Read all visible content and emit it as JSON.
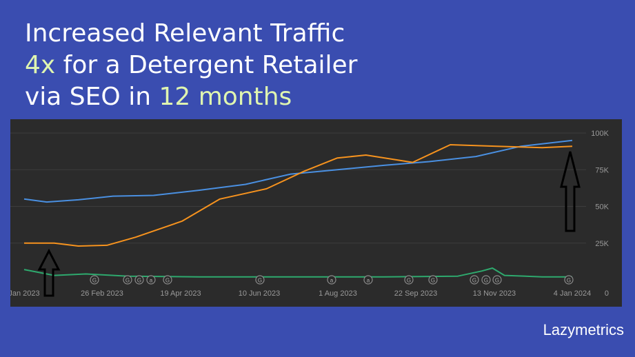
{
  "headline": {
    "line1": "Increased Relevant Traffic",
    "line2_highlight": "4x",
    "line2_rest": " for a Detergent Retailer",
    "line3_pre": "via SEO in ",
    "line3_highlight": "12 months"
  },
  "brand": "Lazymetrics",
  "colors": {
    "background": "#3a4db0",
    "highlight": "#dff5b0",
    "panel": "#2b2b2b",
    "blue_series": "#4a90e2",
    "orange_series": "#f7931e",
    "green_series": "#2eaa6e"
  },
  "chart_data": {
    "type": "line",
    "x_ticks": [
      "Jan 2023",
      "26 Feb 2023",
      "19 Apr 2023",
      "10 Jun 2023",
      "1 Aug 2023",
      "22 Sep 2023",
      "13 Nov 2023",
      "4 Jan 2024"
    ],
    "y_ticks": [
      "100K",
      "75K",
      "50K",
      "25K",
      "0"
    ],
    "ylim": [
      0,
      100000
    ],
    "grid": true,
    "series": [
      {
        "color": "#4a90e2",
        "x": [
          "2023-01-05",
          "2023-01-20",
          "2023-02-10",
          "2023-03-05",
          "2023-04-01",
          "2023-05-01",
          "2023-06-01",
          "2023-07-01",
          "2023-08-01",
          "2023-09-01",
          "2023-10-01",
          "2023-11-01",
          "2023-12-01",
          "2024-01-04"
        ],
        "values": [
          55000,
          53000,
          54500,
          57000,
          57500,
          61000,
          65000,
          72000,
          75000,
          78000,
          80500,
          84000,
          91000,
          95000
        ]
      },
      {
        "color": "#f7931e",
        "x": [
          "2023-01-05",
          "2023-01-25",
          "2023-02-10",
          "2023-03-01",
          "2023-03-20",
          "2023-04-20",
          "2023-05-15",
          "2023-06-15",
          "2023-07-10",
          "2023-08-01",
          "2023-08-20",
          "2023-09-20",
          "2023-10-15",
          "2023-11-15",
          "2023-12-15",
          "2024-01-04"
        ],
        "values": [
          25000,
          25000,
          23000,
          23500,
          29000,
          40000,
          55000,
          62000,
          74000,
          83000,
          85000,
          80000,
          92000,
          91000,
          90000,
          91000
        ]
      },
      {
        "color": "#2eaa6e",
        "x": [
          "2023-01-05",
          "2023-01-25",
          "2023-02-15",
          "2023-03-15",
          "2023-05-01",
          "2023-07-01",
          "2023-09-01",
          "2023-10-20",
          "2023-11-05",
          "2023-11-12",
          "2023-11-20",
          "2023-12-15",
          "2024-01-04"
        ],
        "values": [
          7000,
          3000,
          4000,
          2500,
          2000,
          2000,
          2000,
          2500,
          6000,
          8000,
          3000,
          2000,
          2000
        ]
      }
    ],
    "event_markers": [
      "G",
      "G",
      "G",
      "a",
      "G",
      "G",
      "a",
      "a",
      "G",
      "G",
      "G",
      "G",
      "G",
      "G"
    ]
  }
}
